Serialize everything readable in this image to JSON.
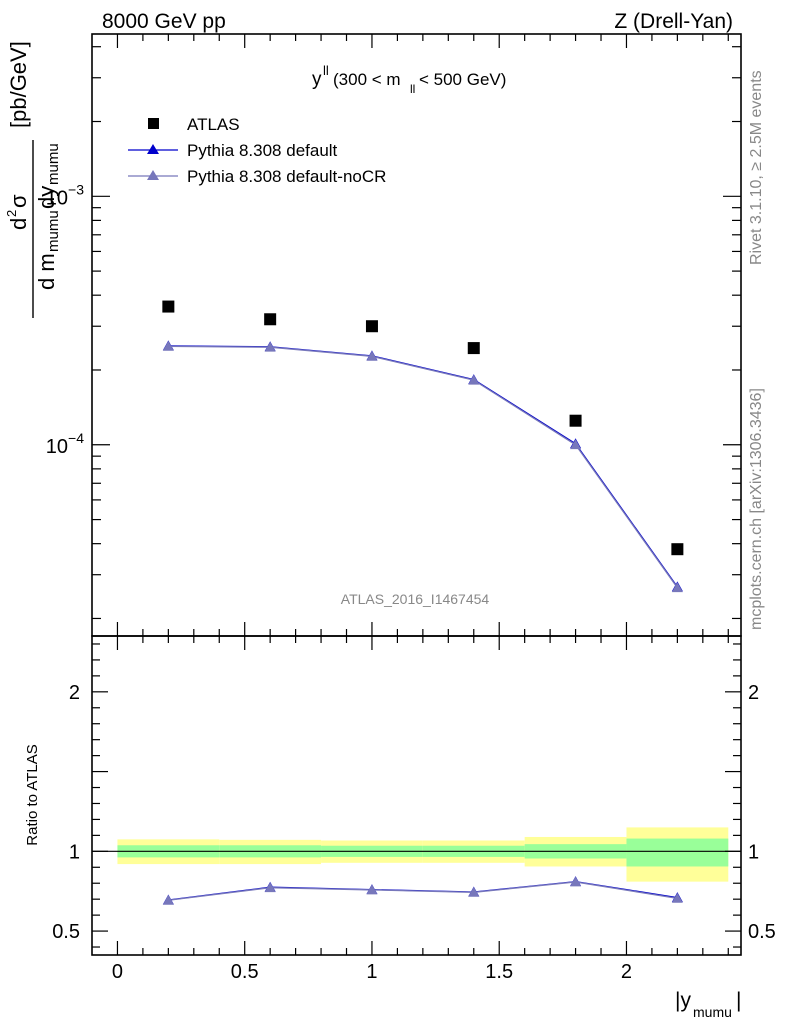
{
  "header": {
    "left": "8000 GeV pp",
    "right": "Z (Drell-Yan)"
  },
  "side_labels": {
    "rivet": "Rivet 3.1.10, ≥ 2.5M events",
    "mcplots": "mcplots.cern.ch [arXiv:1306.3436]"
  },
  "watermark": "ATLAS_2016_I1467454",
  "colors": {
    "atlas": "#000000",
    "pythia_default": "#0000cc",
    "pythia_nocr": "#7777bb",
    "band_inner": "#99ff99",
    "band_outer": "#ffff99"
  },
  "chart_data": [
    {
      "type": "scatter",
      "panel": "main",
      "title_parts": {
        "main": "y",
        "sup": "ll",
        "open": " (300 < m",
        "sub": "ll",
        "close": " < 500 GeV)"
      },
      "ylabel_parts": {
        "num": {
          "d": "d",
          "sup": "2",
          "sigma": "σ"
        },
        "den": {
          "pre": "d m",
          "sub1": "mumu",
          "mid": " dy",
          "sub2": "mumu"
        },
        "unit": "[pb/GeV]"
      },
      "yscale": "log",
      "xlim": [
        -0.1,
        2.45
      ],
      "ylim": [
        1.7e-05,
        0.0045
      ],
      "y_tick_labels": [
        {
          "value": 0.001,
          "base": "10",
          "exp": "−3"
        },
        {
          "value": 0.0001,
          "base": "10",
          "exp": "−4"
        }
      ],
      "legend_position": "top-left",
      "series": [
        {
          "name": "ATLAS",
          "marker": "square",
          "x": [
            0.2,
            0.6,
            1.0,
            1.4,
            1.8,
            2.2
          ],
          "y": [
            0.00036,
            0.00032,
            0.0003,
            0.000245,
            0.000125,
            3.8e-05
          ]
        },
        {
          "name": "Pythia 8.308 default",
          "marker": "triangle",
          "x": [
            0.2,
            0.6,
            1.0,
            1.4,
            1.8,
            2.2
          ],
          "y": [
            0.00025,
            0.000248,
            0.000228,
            0.000183,
            0.000101,
            2.68e-05
          ]
        },
        {
          "name": "Pythia 8.308 default-noCR",
          "marker": "triangle",
          "x": [
            0.2,
            0.6,
            1.0,
            1.4,
            1.8,
            2.2
          ],
          "y": [
            0.000249,
            0.000247,
            0.000227,
            0.000182,
            0.0001,
            2.66e-05
          ]
        }
      ]
    },
    {
      "type": "line",
      "panel": "ratio",
      "ylabel": "Ratio to ATLAS",
      "xlabel_parts": {
        "pre": "|y",
        "sub": "mumu",
        "post": "|"
      },
      "xlim": [
        -0.1,
        2.45
      ],
      "ylim": [
        0.35,
        2.35
      ],
      "x_ticks": [
        0,
        0.5,
        1,
        1.5,
        2
      ],
      "x_tick_labels": [
        "0",
        "0.5",
        "1",
        "1.5",
        "2"
      ],
      "y_ticks": [
        0.5,
        1,
        2
      ],
      "y_tick_labels": [
        "0.5",
        "1",
        "2"
      ],
      "bands": [
        {
          "x0": 0.0,
          "x1": 0.4,
          "inner": [
            0.962,
            1.038
          ],
          "outer": [
            0.92,
            1.075
          ]
        },
        {
          "x0": 0.4,
          "x1": 0.8,
          "inner": [
            0.962,
            1.038
          ],
          "outer": [
            0.92,
            1.072
          ]
        },
        {
          "x0": 0.8,
          "x1": 1.2,
          "inner": [
            0.965,
            1.035
          ],
          "outer": [
            0.928,
            1.068
          ]
        },
        {
          "x0": 1.2,
          "x1": 1.6,
          "inner": [
            0.965,
            1.035
          ],
          "outer": [
            0.928,
            1.068
          ]
        },
        {
          "x0": 1.6,
          "x1": 2.0,
          "inner": [
            0.955,
            1.045
          ],
          "outer": [
            0.905,
            1.09
          ]
        },
        {
          "x0": 2.0,
          "x1": 2.4,
          "inner": [
            0.905,
            1.08
          ],
          "outer": [
            0.81,
            1.15
          ]
        }
      ],
      "series": [
        {
          "name": "Pythia 8.308 default",
          "x": [
            0.2,
            0.6,
            1.0,
            1.4,
            1.8,
            2.2
          ],
          "y": [
            0.695,
            0.775,
            0.76,
            0.745,
            0.81,
            0.71
          ]
        },
        {
          "name": "Pythia 8.308 default-noCR",
          "x": [
            0.2,
            0.6,
            1.0,
            1.4,
            1.8,
            2.2
          ],
          "y": [
            0.693,
            0.772,
            0.758,
            0.743,
            0.808,
            0.705
          ]
        }
      ]
    }
  ]
}
